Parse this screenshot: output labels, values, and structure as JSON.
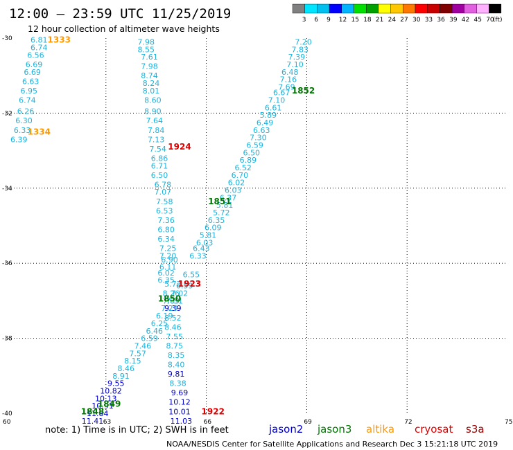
{
  "colors": {
    "jason2": "#0000cc",
    "jason3": "#007700",
    "altika": "#ff9900",
    "cryosat": "#dd0000",
    "s3a": "#990000",
    "obs": "#1ab3dd",
    "obs_deep": "#0000cc"
  },
  "footer": {
    "note": "note: 1) Time is in UTC; 2) SWH is in feet",
    "credit": "NOAA/NESDIS Center for Satellite Applications and Research   Dec  3 15:21:18 UTC 2019",
    "satellites": [
      {
        "name": "jason2",
        "color": "#0000cc"
      },
      {
        "name": "jason3",
        "color": "#007700"
      },
      {
        "name": "altika",
        "color": "#ff9900"
      },
      {
        "name": "cryosat",
        "color": "#dd0000"
      },
      {
        "name": "s3a",
        "color": "#990000"
      }
    ]
  },
  "chart_data": {
    "type": "scatter",
    "title": "12:00 – 23:59 UTC 11/25/2019",
    "subtitle": "12 hour collection of altimeter wave heights",
    "xlim": [
      60,
      75
    ],
    "ylim": [
      -40,
      -30
    ],
    "xticks": [
      "60",
      "63",
      "66",
      "69",
      "72",
      "75"
    ],
    "yticks": [
      "-30",
      "-32",
      "-34",
      "-36",
      "-38",
      "-40"
    ],
    "grid": true,
    "colorbar": {
      "unit": "(ft)",
      "labels": [
        "3",
        "6",
        "9",
        "12",
        "15",
        "18",
        "21",
        "24",
        "27",
        "30",
        "33",
        "36",
        "39",
        "42",
        "45",
        "70"
      ],
      "colors": [
        "#808080",
        "#00e5ff",
        "#00c0f0",
        "#0000ff",
        "#00b4ff",
        "#00e000",
        "#00a000",
        "#ffff00",
        "#ffc800",
        "#ff7800",
        "#ff0000",
        "#c80000",
        "#800000",
        "#a000a0",
        "#e060e0",
        "#ffb0ff",
        "#000000"
      ]
    },
    "passes": [
      {
        "label": "1333",
        "color": "#ff9900",
        "x": 61.6,
        "y": -30.05
      },
      {
        "label": "1334",
        "color": "#ff9900",
        "x": 61.0,
        "y": -32.5
      },
      {
        "label": "1924",
        "color": "#dd0000",
        "x": 65.2,
        "y": -32.9
      },
      {
        "label": "1852",
        "color": "#007700",
        "x": 68.9,
        "y": -31.4
      },
      {
        "label": "1851",
        "color": "#007700",
        "x": 66.4,
        "y": -34.35
      },
      {
        "label": "1923",
        "color": "#dd0000",
        "x": 65.5,
        "y": -36.55
      },
      {
        "label": "1850",
        "color": "#007700",
        "x": 64.9,
        "y": -36.95
      },
      {
        "label": "1849",
        "color": "#007700",
        "x": 63.1,
        "y": -39.75
      },
      {
        "label": "1848",
        "color": "#007700",
        "x": 62.6,
        "y": -39.95
      },
      {
        "label": "1922",
        "color": "#dd0000",
        "x": 66.2,
        "y": -39.95
      }
    ],
    "series": [
      {
        "color": "#1ab3dd",
        "points": [
          {
            "v": "6.81",
            "x": 61.0,
            "y": -30.05
          },
          {
            "v": "6.74",
            "x": 61.0,
            "y": -30.25
          },
          {
            "v": "6.56",
            "x": 60.9,
            "y": -30.45
          },
          {
            "v": "6.69",
            "x": 60.85,
            "y": -30.7
          },
          {
            "v": "6.69",
            "x": 60.8,
            "y": -30.9
          },
          {
            "v": "6.63",
            "x": 60.75,
            "y": -31.15
          },
          {
            "v": "6.95",
            "x": 60.7,
            "y": -31.4
          },
          {
            "v": "6.74",
            "x": 60.65,
            "y": -31.65
          },
          {
            "v": "6.26",
            "x": 60.6,
            "y": -31.95
          },
          {
            "v": "6.30",
            "x": 60.55,
            "y": -32.2
          },
          {
            "v": "6.33",
            "x": 60.5,
            "y": -32.45
          },
          {
            "v": "6.39",
            "x": 60.4,
            "y": -32.7
          }
        ]
      },
      {
        "color": "#1ab3dd",
        "points": [
          {
            "v": "7.98",
            "x": 64.2,
            "y": -30.1
          },
          {
            "v": "8.55",
            "x": 64.2,
            "y": -30.3
          },
          {
            "v": "7.61",
            "x": 64.3,
            "y": -30.5
          },
          {
            "v": "7.98",
            "x": 64.3,
            "y": -30.75
          },
          {
            "v": "8.74",
            "x": 64.3,
            "y": -31.0
          },
          {
            "v": "8.24",
            "x": 64.35,
            "y": -31.2
          },
          {
            "v": "8.01",
            "x": 64.35,
            "y": -31.4
          },
          {
            "v": "8.60",
            "x": 64.4,
            "y": -31.65
          },
          {
            "v": "8.90",
            "x": 64.4,
            "y": -31.95
          },
          {
            "v": "7.64",
            "x": 64.45,
            "y": -32.2
          },
          {
            "v": "7.84",
            "x": 64.5,
            "y": -32.45
          },
          {
            "v": "7.13",
            "x": 64.5,
            "y": -32.7
          },
          {
            "v": "7.54",
            "x": 64.55,
            "y": -32.95
          },
          {
            "v": "6.86",
            "x": 64.6,
            "y": -33.2
          },
          {
            "v": "6.71",
            "x": 64.6,
            "y": -33.4
          },
          {
            "v": "6.50",
            "x": 64.6,
            "y": -33.65
          },
          {
            "v": "6.78",
            "x": 64.7,
            "y": -33.9
          },
          {
            "v": "7.07",
            "x": 64.7,
            "y": -34.1
          },
          {
            "v": "7.58",
            "x": 64.75,
            "y": -34.35
          },
          {
            "v": "6.53",
            "x": 64.75,
            "y": -34.6
          },
          {
            "v": "7.36",
            "x": 64.8,
            "y": -34.85
          },
          {
            "v": "6.80",
            "x": 64.8,
            "y": -35.1
          },
          {
            "v": "6.34",
            "x": 64.8,
            "y": -35.35
          },
          {
            "v": "7.25",
            "x": 64.85,
            "y": -35.6
          },
          {
            "v": "7.20",
            "x": 64.85,
            "y": -35.8
          },
          {
            "v": "6.90",
            "x": 64.9,
            "y": -35.9
          },
          {
            "v": "6.11",
            "x": 64.85,
            "y": -36.1
          },
          {
            "v": "6.02",
            "x": 64.8,
            "y": -36.25
          },
          {
            "v": "6.35",
            "x": 64.8,
            "y": -36.45
          },
          {
            "v": "5.72",
            "x": 65.0,
            "y": -36.55
          },
          {
            "v": "8.26",
            "x": 64.95,
            "y": -36.8
          },
          {
            "v": "7.89",
            "x": 64.95,
            "y": -37.0
          },
          {
            "v": "8.52",
            "x": 65.0,
            "y": -37.45
          },
          {
            "v": "8.46",
            "x": 65.0,
            "y": -37.7
          },
          {
            "v": "7.55",
            "x": 65.05,
            "y": -37.95
          },
          {
            "v": "8.75",
            "x": 65.05,
            "y": -38.2
          },
          {
            "v": "8.35",
            "x": 65.1,
            "y": -38.45
          },
          {
            "v": "8.40",
            "x": 65.1,
            "y": -38.7
          },
          {
            "v": "8.38",
            "x": 65.15,
            "y": -39.2
          }
        ]
      },
      {
        "color": "#0000cc",
        "points": [
          {
            "v": "9.39",
            "x": 65.0,
            "y": -37.2
          },
          {
            "v": "9.81",
            "x": 65.1,
            "y": -38.95
          },
          {
            "v": "9.69",
            "x": 65.2,
            "y": -39.45
          },
          {
            "v": "10.12",
            "x": 65.2,
            "y": -39.7
          },
          {
            "v": "10.01",
            "x": 65.2,
            "y": -39.95
          },
          {
            "v": "11.03",
            "x": 65.25,
            "y": -40.2
          }
        ]
      },
      {
        "color": "#1ab3dd",
        "points": [
          {
            "v": "7.20",
            "x": 68.9,
            "y": -30.1
          },
          {
            "v": "7.83",
            "x": 68.8,
            "y": -30.3
          },
          {
            "v": "7.39",
            "x": 68.7,
            "y": -30.5
          },
          {
            "v": "7.10",
            "x": 68.65,
            "y": -30.7
          },
          {
            "v": "6.48",
            "x": 68.5,
            "y": -30.9
          },
          {
            "v": "7.16",
            "x": 68.45,
            "y": -31.1
          },
          {
            "v": "7.69",
            "x": 68.4,
            "y": -31.3
          },
          {
            "v": "6.67",
            "x": 68.25,
            "y": -31.45
          },
          {
            "v": "7.10",
            "x": 68.1,
            "y": -31.65
          },
          {
            "v": "6.61",
            "x": 68.0,
            "y": -31.85
          },
          {
            "v": "5.89",
            "x": 67.85,
            "y": -32.05
          },
          {
            "v": "6.49",
            "x": 67.75,
            "y": -32.25
          },
          {
            "v": "6.63",
            "x": 67.65,
            "y": -32.45
          },
          {
            "v": "7.30",
            "x": 67.55,
            "y": -32.65
          },
          {
            "v": "6.59",
            "x": 67.45,
            "y": -32.85
          },
          {
            "v": "6.50",
            "x": 67.35,
            "y": -33.05
          },
          {
            "v": "6.89",
            "x": 67.25,
            "y": -33.25
          },
          {
            "v": "6.52",
            "x": 67.1,
            "y": -33.45
          },
          {
            "v": "6.70",
            "x": 67.0,
            "y": -33.65
          },
          {
            "v": "6.02",
            "x": 66.9,
            "y": -33.85
          },
          {
            "v": "6.03",
            "x": 66.8,
            "y": -34.05
          },
          {
            "v": "6.37",
            "x": 66.65,
            "y": -34.25
          },
          {
            "v": "5.81",
            "x": 66.55,
            "y": -34.45
          },
          {
            "v": "5.72",
            "x": 66.45,
            "y": -34.65
          },
          {
            "v": "6.35",
            "x": 66.3,
            "y": -34.85
          },
          {
            "v": "6.09",
            "x": 66.2,
            "y": -35.05
          },
          {
            "v": "5.81",
            "x": 66.05,
            "y": -35.25
          },
          {
            "v": "6.03",
            "x": 65.95,
            "y": -35.45
          },
          {
            "v": "6.43",
            "x": 65.85,
            "y": -35.6
          },
          {
            "v": "6.33",
            "x": 65.75,
            "y": -35.8
          },
          {
            "v": "6.55",
            "x": 65.55,
            "y": -36.3
          },
          {
            "v": "6.59",
            "x": 65.35,
            "y": -36.6
          },
          {
            "v": "7.02",
            "x": 65.2,
            "y": -36.8
          },
          {
            "v": "7.31",
            "x": 65.05,
            "y": -37.0
          },
          {
            "v": "7.29",
            "x": 64.9,
            "y": -37.2
          },
          {
            "v": "6.19",
            "x": 64.75,
            "y": -37.4
          },
          {
            "v": "6.25",
            "x": 64.6,
            "y": -37.6
          },
          {
            "v": "6.46",
            "x": 64.45,
            "y": -37.8
          },
          {
            "v": "6.59",
            "x": 64.3,
            "y": -38.0
          },
          {
            "v": "7.46",
            "x": 64.1,
            "y": -38.2
          },
          {
            "v": "7.57",
            "x": 63.95,
            "y": -38.4
          },
          {
            "v": "8.15",
            "x": 63.8,
            "y": -38.6
          },
          {
            "v": "8.46",
            "x": 63.6,
            "y": -38.8
          },
          {
            "v": "8.91",
            "x": 63.45,
            "y": -39.0
          }
        ]
      },
      {
        "color": "#0000cc",
        "points": [
          {
            "v": "9.55",
            "x": 63.3,
            "y": -39.2
          },
          {
            "v": "10.82",
            "x": 63.15,
            "y": -39.4
          },
          {
            "v": "10.13",
            "x": 63.0,
            "y": -39.6
          },
          {
            "v": "10.91",
            "x": 62.9,
            "y": -39.8
          },
          {
            "v": "11.84",
            "x": 62.75,
            "y": -40.0
          },
          {
            "v": "11.41",
            "x": 62.6,
            "y": -40.2
          }
        ]
      }
    ]
  }
}
